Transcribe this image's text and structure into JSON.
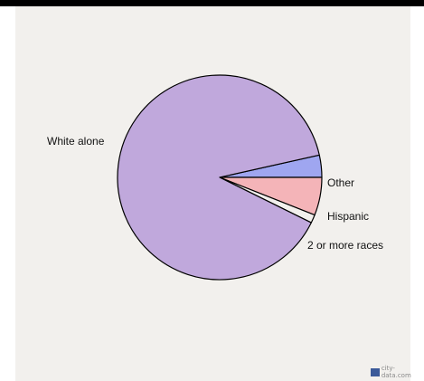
{
  "chart_data": {
    "type": "pie",
    "slices": [
      {
        "label": "White alone",
        "percent": 89.2,
        "color": "#c0a8dc"
      },
      {
        "label": "2 or more races",
        "percent": 1.3,
        "color": "#f2f0ed"
      },
      {
        "label": "Hispanic",
        "percent": 6.0,
        "color": "#f4b4b8"
      },
      {
        "label": "Other",
        "percent": 3.5,
        "color": "#9fa6f0"
      }
    ],
    "start_angle_deg": 0,
    "direction": "clockwise"
  },
  "watermark": {
    "text": "city-data.com",
    "icon": "city-data-logo-icon"
  }
}
